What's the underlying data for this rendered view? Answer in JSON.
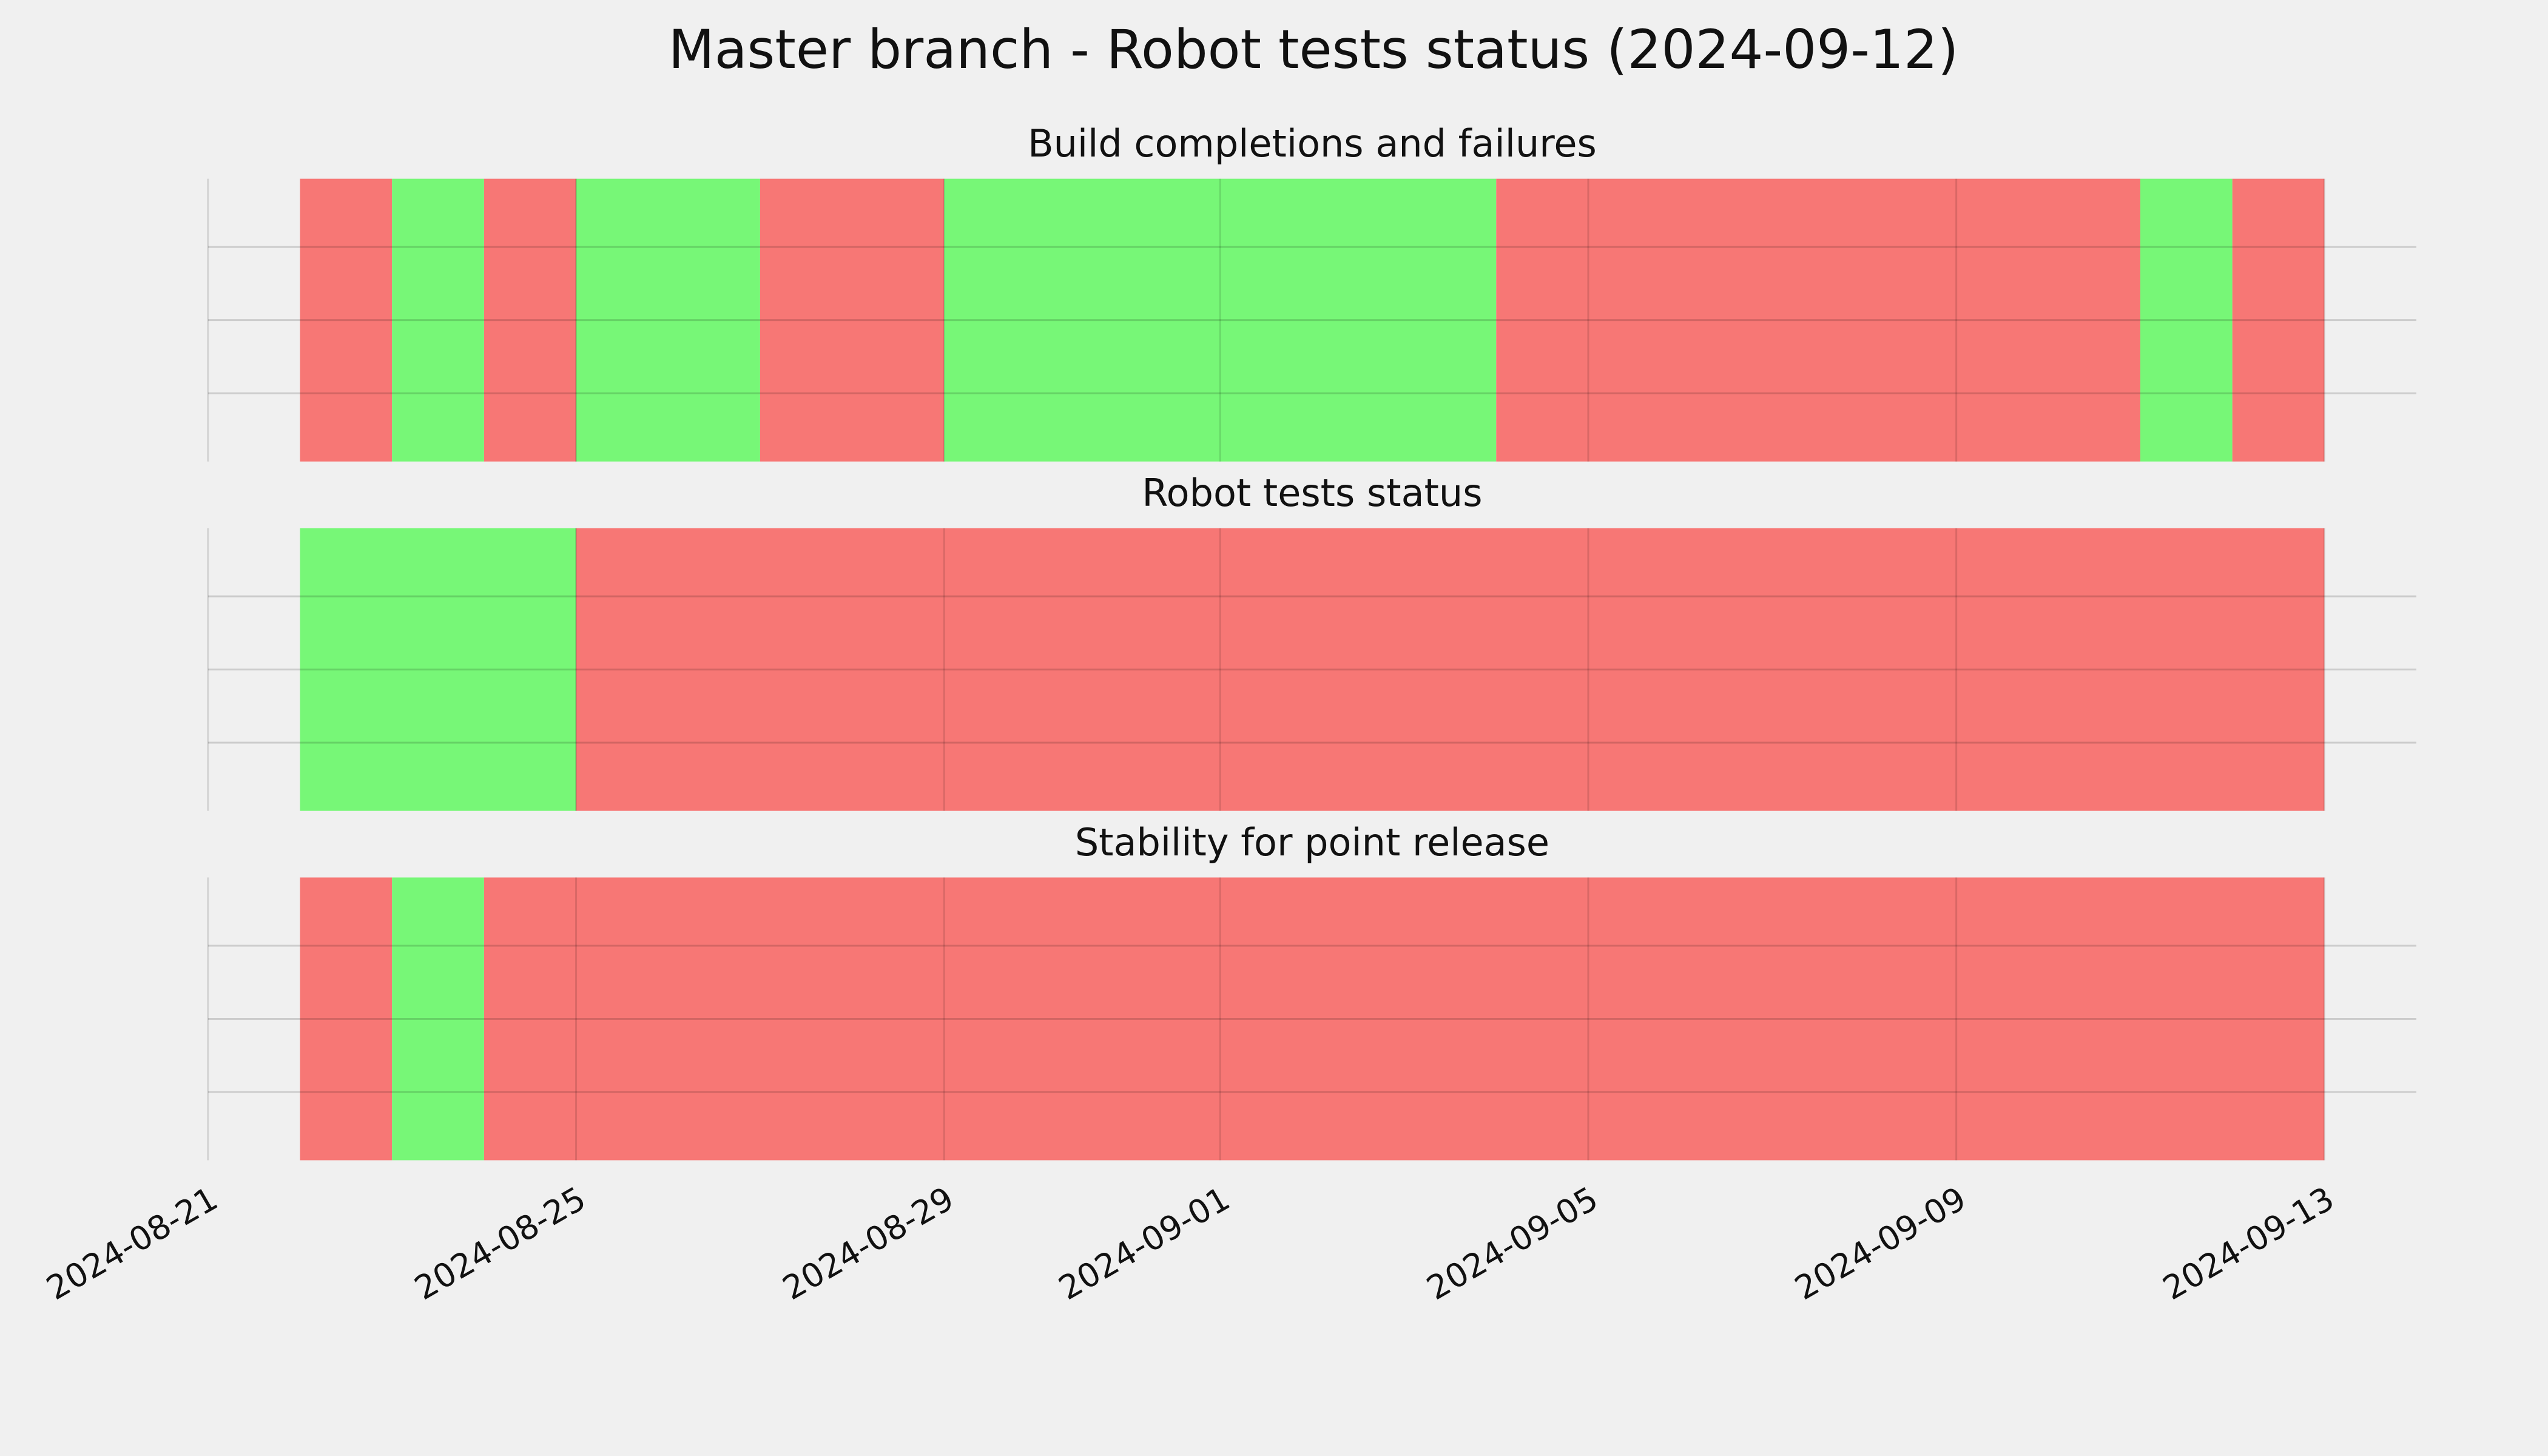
{
  "chart_data": {
    "type": "span",
    "title": "Master branch - Robot tests status (2024-09-12)",
    "xlim": [
      "2024-08-21",
      "2024-09-14"
    ],
    "xticks": [
      "2024-08-21",
      "2024-08-25",
      "2024-08-29",
      "2024-09-01",
      "2024-09-05",
      "2024-09-09",
      "2024-09-13"
    ],
    "grid": true,
    "panels": [
      {
        "title": "Build completions and failures",
        "spans": [
          {
            "start": "2024-08-22",
            "end": "2024-08-23",
            "color": "#f77775"
          },
          {
            "start": "2024-08-23",
            "end": "2024-08-24",
            "color": "#77f777"
          },
          {
            "start": "2024-08-24",
            "end": "2024-08-25",
            "color": "#f77775"
          },
          {
            "start": "2024-08-25",
            "end": "2024-08-27",
            "color": "#77f777"
          },
          {
            "start": "2024-08-27",
            "end": "2024-08-29",
            "color": "#f77775"
          },
          {
            "start": "2024-08-29",
            "end": "2024-09-04",
            "color": "#77f777"
          },
          {
            "start": "2024-09-04",
            "end": "2024-09-11",
            "color": "#f77775"
          },
          {
            "start": "2024-09-11",
            "end": "2024-09-12",
            "color": "#77f777"
          },
          {
            "start": "2024-09-12",
            "end": "2024-09-13",
            "color": "#f77775"
          }
        ]
      },
      {
        "title": "Robot tests status",
        "spans": [
          {
            "start": "2024-08-22",
            "end": "2024-08-25",
            "color": "#77f777"
          },
          {
            "start": "2024-08-25",
            "end": "2024-09-13",
            "color": "#f77775"
          }
        ]
      },
      {
        "title": "Stability for point release",
        "spans": [
          {
            "start": "2024-08-22",
            "end": "2024-08-23",
            "color": "#f77775"
          },
          {
            "start": "2024-08-23",
            "end": "2024-08-24",
            "color": "#77f777"
          },
          {
            "start": "2024-08-24",
            "end": "2024-09-13",
            "color": "#f77775"
          }
        ]
      }
    ]
  }
}
